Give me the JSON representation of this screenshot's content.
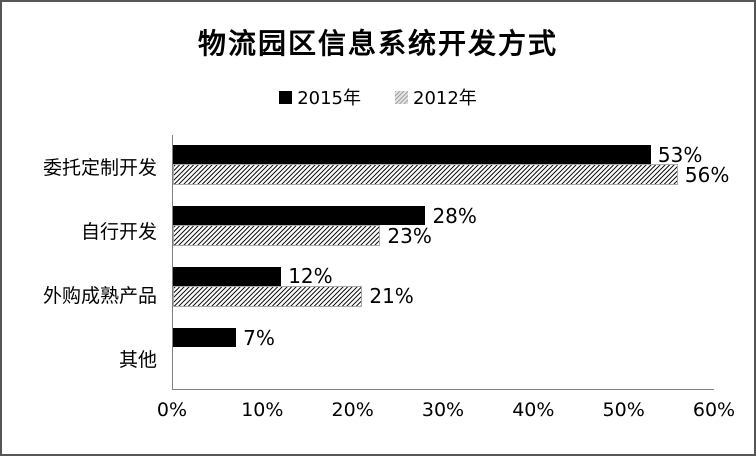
{
  "chart_data": {
    "type": "bar",
    "orientation": "horizontal",
    "title": "物流园区信息系统开发方式",
    "categories": [
      "委托定制开发",
      "自行开发",
      "外购成熟产品",
      "其他"
    ],
    "series": [
      {
        "name": "2015年",
        "pattern": "solid-black",
        "color": "#000000",
        "values": [
          53,
          28,
          12,
          7
        ],
        "data_labels": [
          "53%",
          "28%",
          "12%",
          "7%"
        ]
      },
      {
        "name": "2012年",
        "pattern": "diagonal-hatch",
        "color": "#ffffff",
        "hatch_line_color": "#1b1b1b",
        "values": [
          56,
          23,
          21,
          null
        ],
        "data_labels": [
          "56%",
          "23%",
          "21%",
          null
        ]
      }
    ],
    "xlim": [
      0,
      60
    ],
    "x_ticks": [
      {
        "value": 0,
        "label": "0%"
      },
      {
        "value": 10,
        "label": "10%"
      },
      {
        "value": 20,
        "label": "20%"
      },
      {
        "value": 30,
        "label": "30%"
      },
      {
        "value": 40,
        "label": "40%"
      },
      {
        "value": 50,
        "label": "50%"
      },
      {
        "value": 60,
        "label": "60%"
      }
    ],
    "legend_position": "top",
    "grid": false,
    "axis_color": "#808080",
    "frame_border_color": "#565656"
  }
}
